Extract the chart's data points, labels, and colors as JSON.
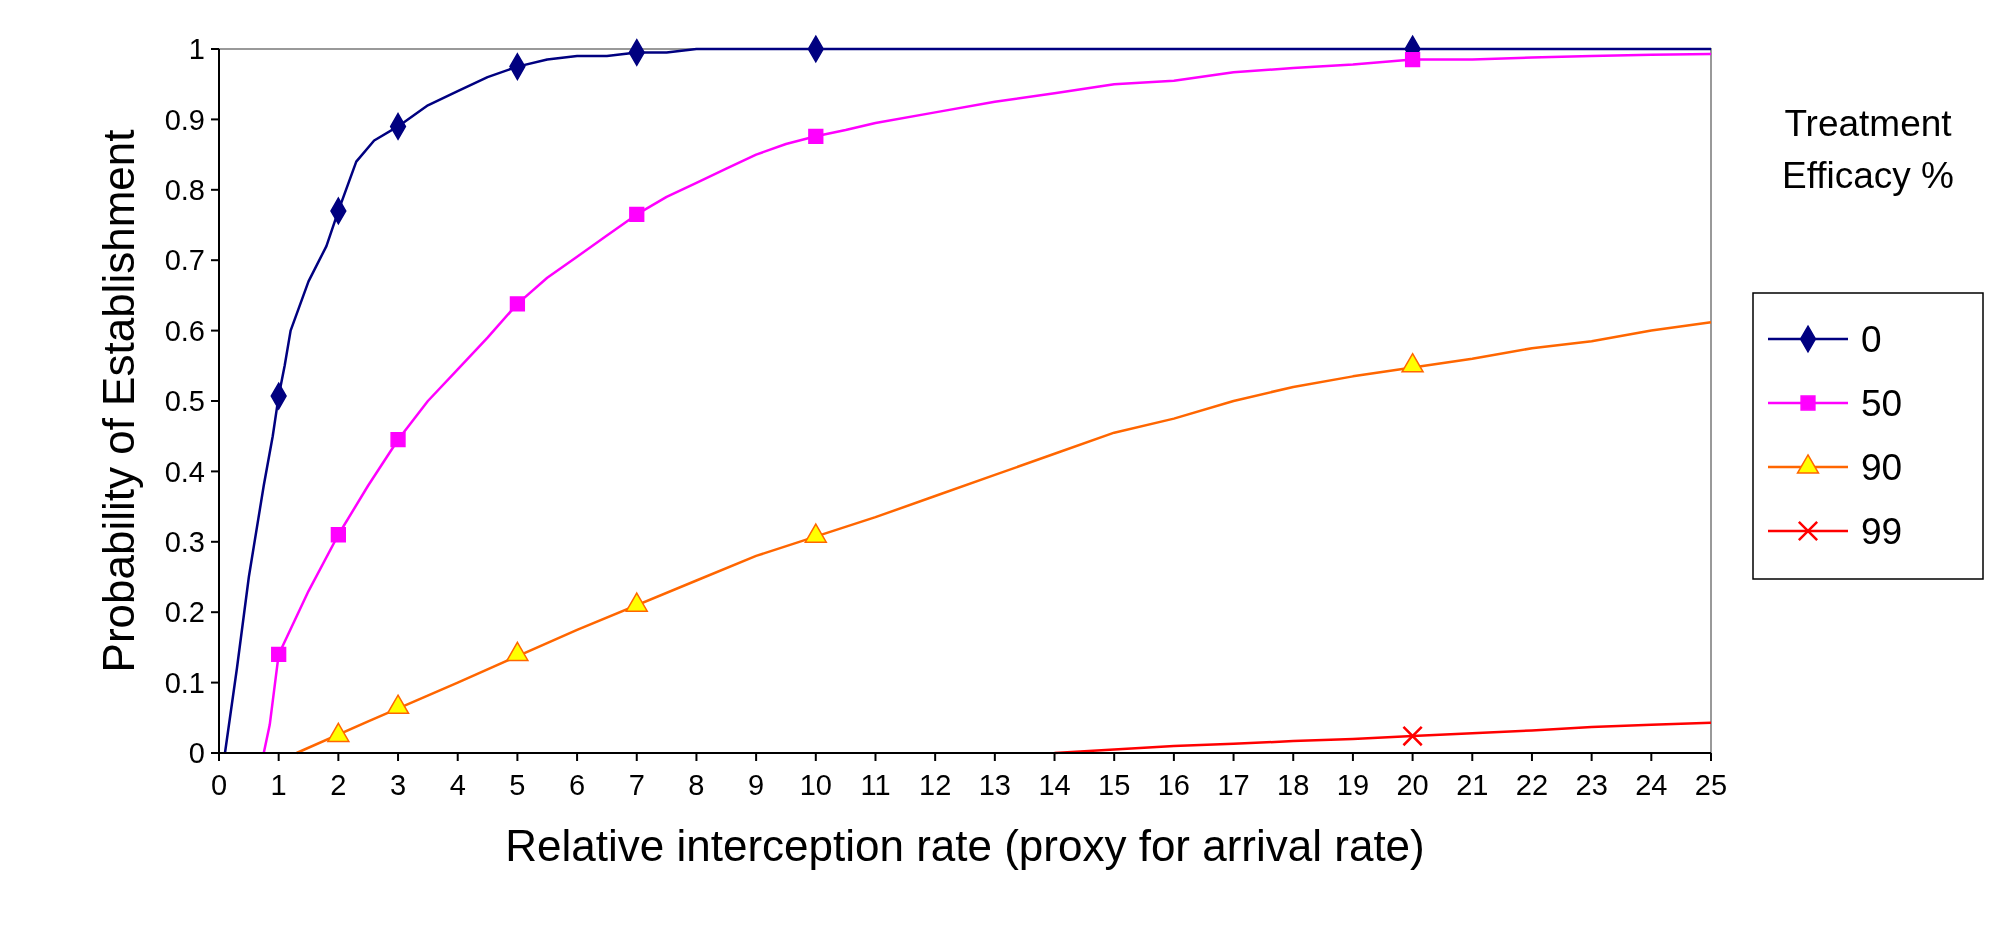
{
  "chart_data": {
    "type": "line",
    "xlabel": "Relative interception rate (proxy for arrival rate)",
    "ylabel": "Probability of Establishment",
    "legend_title": "Treatment Efficacy %",
    "legend": "right",
    "xlim": [
      0,
      25
    ],
    "xticks": [
      0,
      1,
      2,
      3,
      4,
      5,
      6,
      7,
      8,
      9,
      10,
      11,
      12,
      13,
      14,
      15,
      16,
      17,
      18,
      19,
      20,
      21,
      22,
      23,
      24,
      25
    ],
    "ylim": [
      0,
      1
    ],
    "yticks": [
      0,
      0.1,
      0.2,
      0.3,
      0.4,
      0.5,
      0.6,
      0.7,
      0.8,
      0.9,
      1
    ],
    "series": [
      {
        "color": "#000080",
        "x": [
          0.1,
          0.3,
          0.5,
          0.75,
          0.9,
          1,
          1.1,
          1.2,
          1.5,
          1.8,
          2,
          2.3,
          2.6,
          3,
          3.5,
          4,
          4.5,
          5,
          5.5,
          6,
          6.5,
          7,
          7.5,
          8,
          10,
          20,
          25
        ],
        "values": [
          0,
          0.12,
          0.25,
          0.38,
          0.45,
          0.507,
          0.55,
          0.6,
          0.67,
          0.72,
          0.77,
          0.84,
          0.87,
          0.89,
          0.92,
          0.94,
          0.96,
          0.975,
          0.985,
          0.99,
          0.99,
          0.995,
          0.995,
          1,
          1,
          1,
          1
        ]
      },
      {
        "type": "scatter",
        "name": "0",
        "color": "#000080",
        "marker": "diamond",
        "x": [
          1,
          2,
          3,
          5,
          7,
          10,
          20
        ],
        "values": [
          0.507,
          0.77,
          0.89,
          0.975,
          0.995,
          1,
          1
        ]
      },
      {
        "color": "#ff00ff",
        "x": [
          0.75,
          0.85,
          1,
          1.5,
          2,
          2.5,
          3,
          3.5,
          4,
          4.5,
          5,
          5.5,
          6,
          6.5,
          7,
          7.5,
          8,
          8.5,
          9,
          9.5,
          10,
          10.5,
          11,
          12,
          13,
          14,
          15,
          16,
          17,
          18,
          19,
          20,
          21,
          22,
          23,
          24,
          25
        ],
        "values": [
          0,
          0.04,
          0.14,
          0.23,
          0.31,
          0.38,
          0.445,
          0.5,
          0.545,
          0.59,
          0.638,
          0.675,
          0.705,
          0.735,
          0.765,
          0.79,
          0.81,
          0.83,
          0.85,
          0.865,
          0.876,
          0.885,
          0.895,
          0.91,
          0.925,
          0.937,
          0.95,
          0.955,
          0.967,
          0.973,
          0.978,
          0.985,
          0.985,
          0.988,
          0.99,
          0.992,
          0.993
        ]
      },
      {
        "type": "scatter",
        "name": "50",
        "color": "#ff00ff",
        "marker": "square",
        "x": [
          1,
          2,
          3,
          5,
          7,
          10,
          20
        ],
        "values": [
          0.14,
          0.31,
          0.445,
          0.638,
          0.765,
          0.876,
          0.985
        ]
      },
      {
        "color": "#ff6600",
        "x": [
          1.3,
          2.5,
          4,
          6,
          8,
          9,
          11,
          12,
          13,
          14,
          15,
          16,
          17,
          18,
          19,
          21,
          22,
          23,
          24,
          25
        ],
        "values": [
          0,
          0.045,
          0.1,
          0.175,
          0.245,
          0.28,
          0.335,
          0.365,
          0.395,
          0.425,
          0.455,
          0.475,
          0.5,
          0.52,
          0.535,
          0.56,
          0.575,
          0.585,
          0.6,
          0.612
        ]
      },
      {
        "type": "scatter",
        "name": "90",
        "color": "#ffff00",
        "marker": "triangle",
        "x": [
          2,
          3,
          5,
          7,
          10,
          20
        ],
        "values": [
          0.025,
          0.065,
          0.14,
          0.21,
          0.308,
          0.55
        ]
      },
      {
        "color": "#ff0000",
        "x": [
          14,
          15,
          16,
          17,
          18,
          19,
          20,
          21,
          22,
          23,
          24,
          25
        ],
        "values": [
          0,
          0.005,
          0.01,
          0.013,
          0.017,
          0.02,
          0.024,
          0.028,
          0.032,
          0.037,
          0.04,
          0.043
        ]
      },
      {
        "type": "scatter",
        "name": "99",
        "color": "#ff0000",
        "marker": "cross",
        "x": [
          20
        ],
        "values": [
          0.024
        ]
      }
    ]
  }
}
